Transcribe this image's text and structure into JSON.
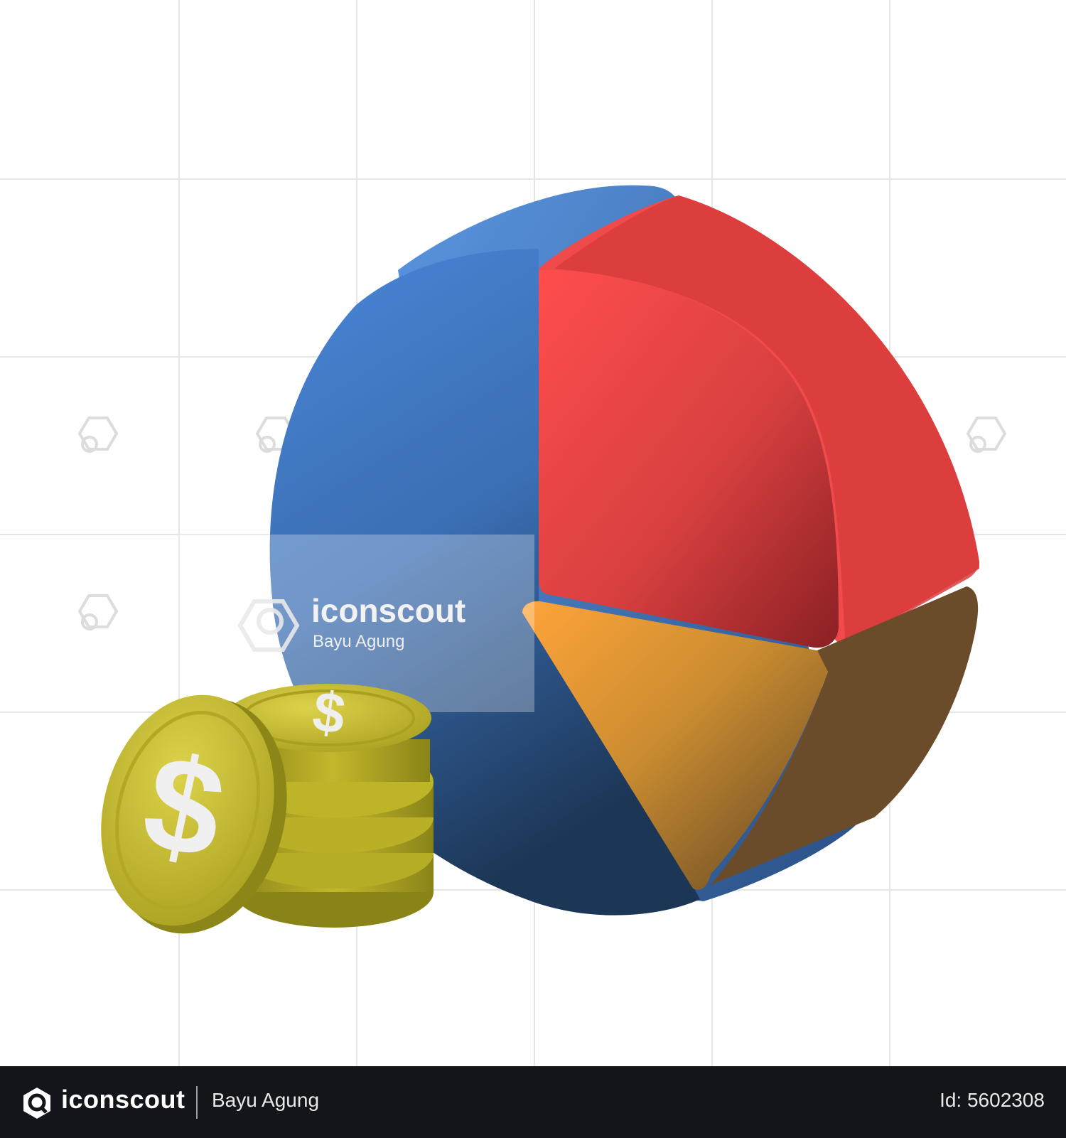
{
  "watermark": {
    "brand": "iconscout",
    "author": "Bayu Agung"
  },
  "footer": {
    "brand": "iconscout",
    "author": "Bayu Agung",
    "asset_id": "Id: 5602308"
  },
  "colors": {
    "pie_blue": "#3f72b8",
    "pie_red": "#e04545",
    "pie_orange": "#d39a33",
    "coin_gold": "#c9c032",
    "grid_line": "#e6e6e6",
    "footer_bg": "#14151a"
  },
  "illustration": {
    "subject": "3d pie chart with dollar coin stack",
    "icons": [
      "pie-chart-icon",
      "coin-stack-icon",
      "dollar-sign-icon"
    ]
  }
}
